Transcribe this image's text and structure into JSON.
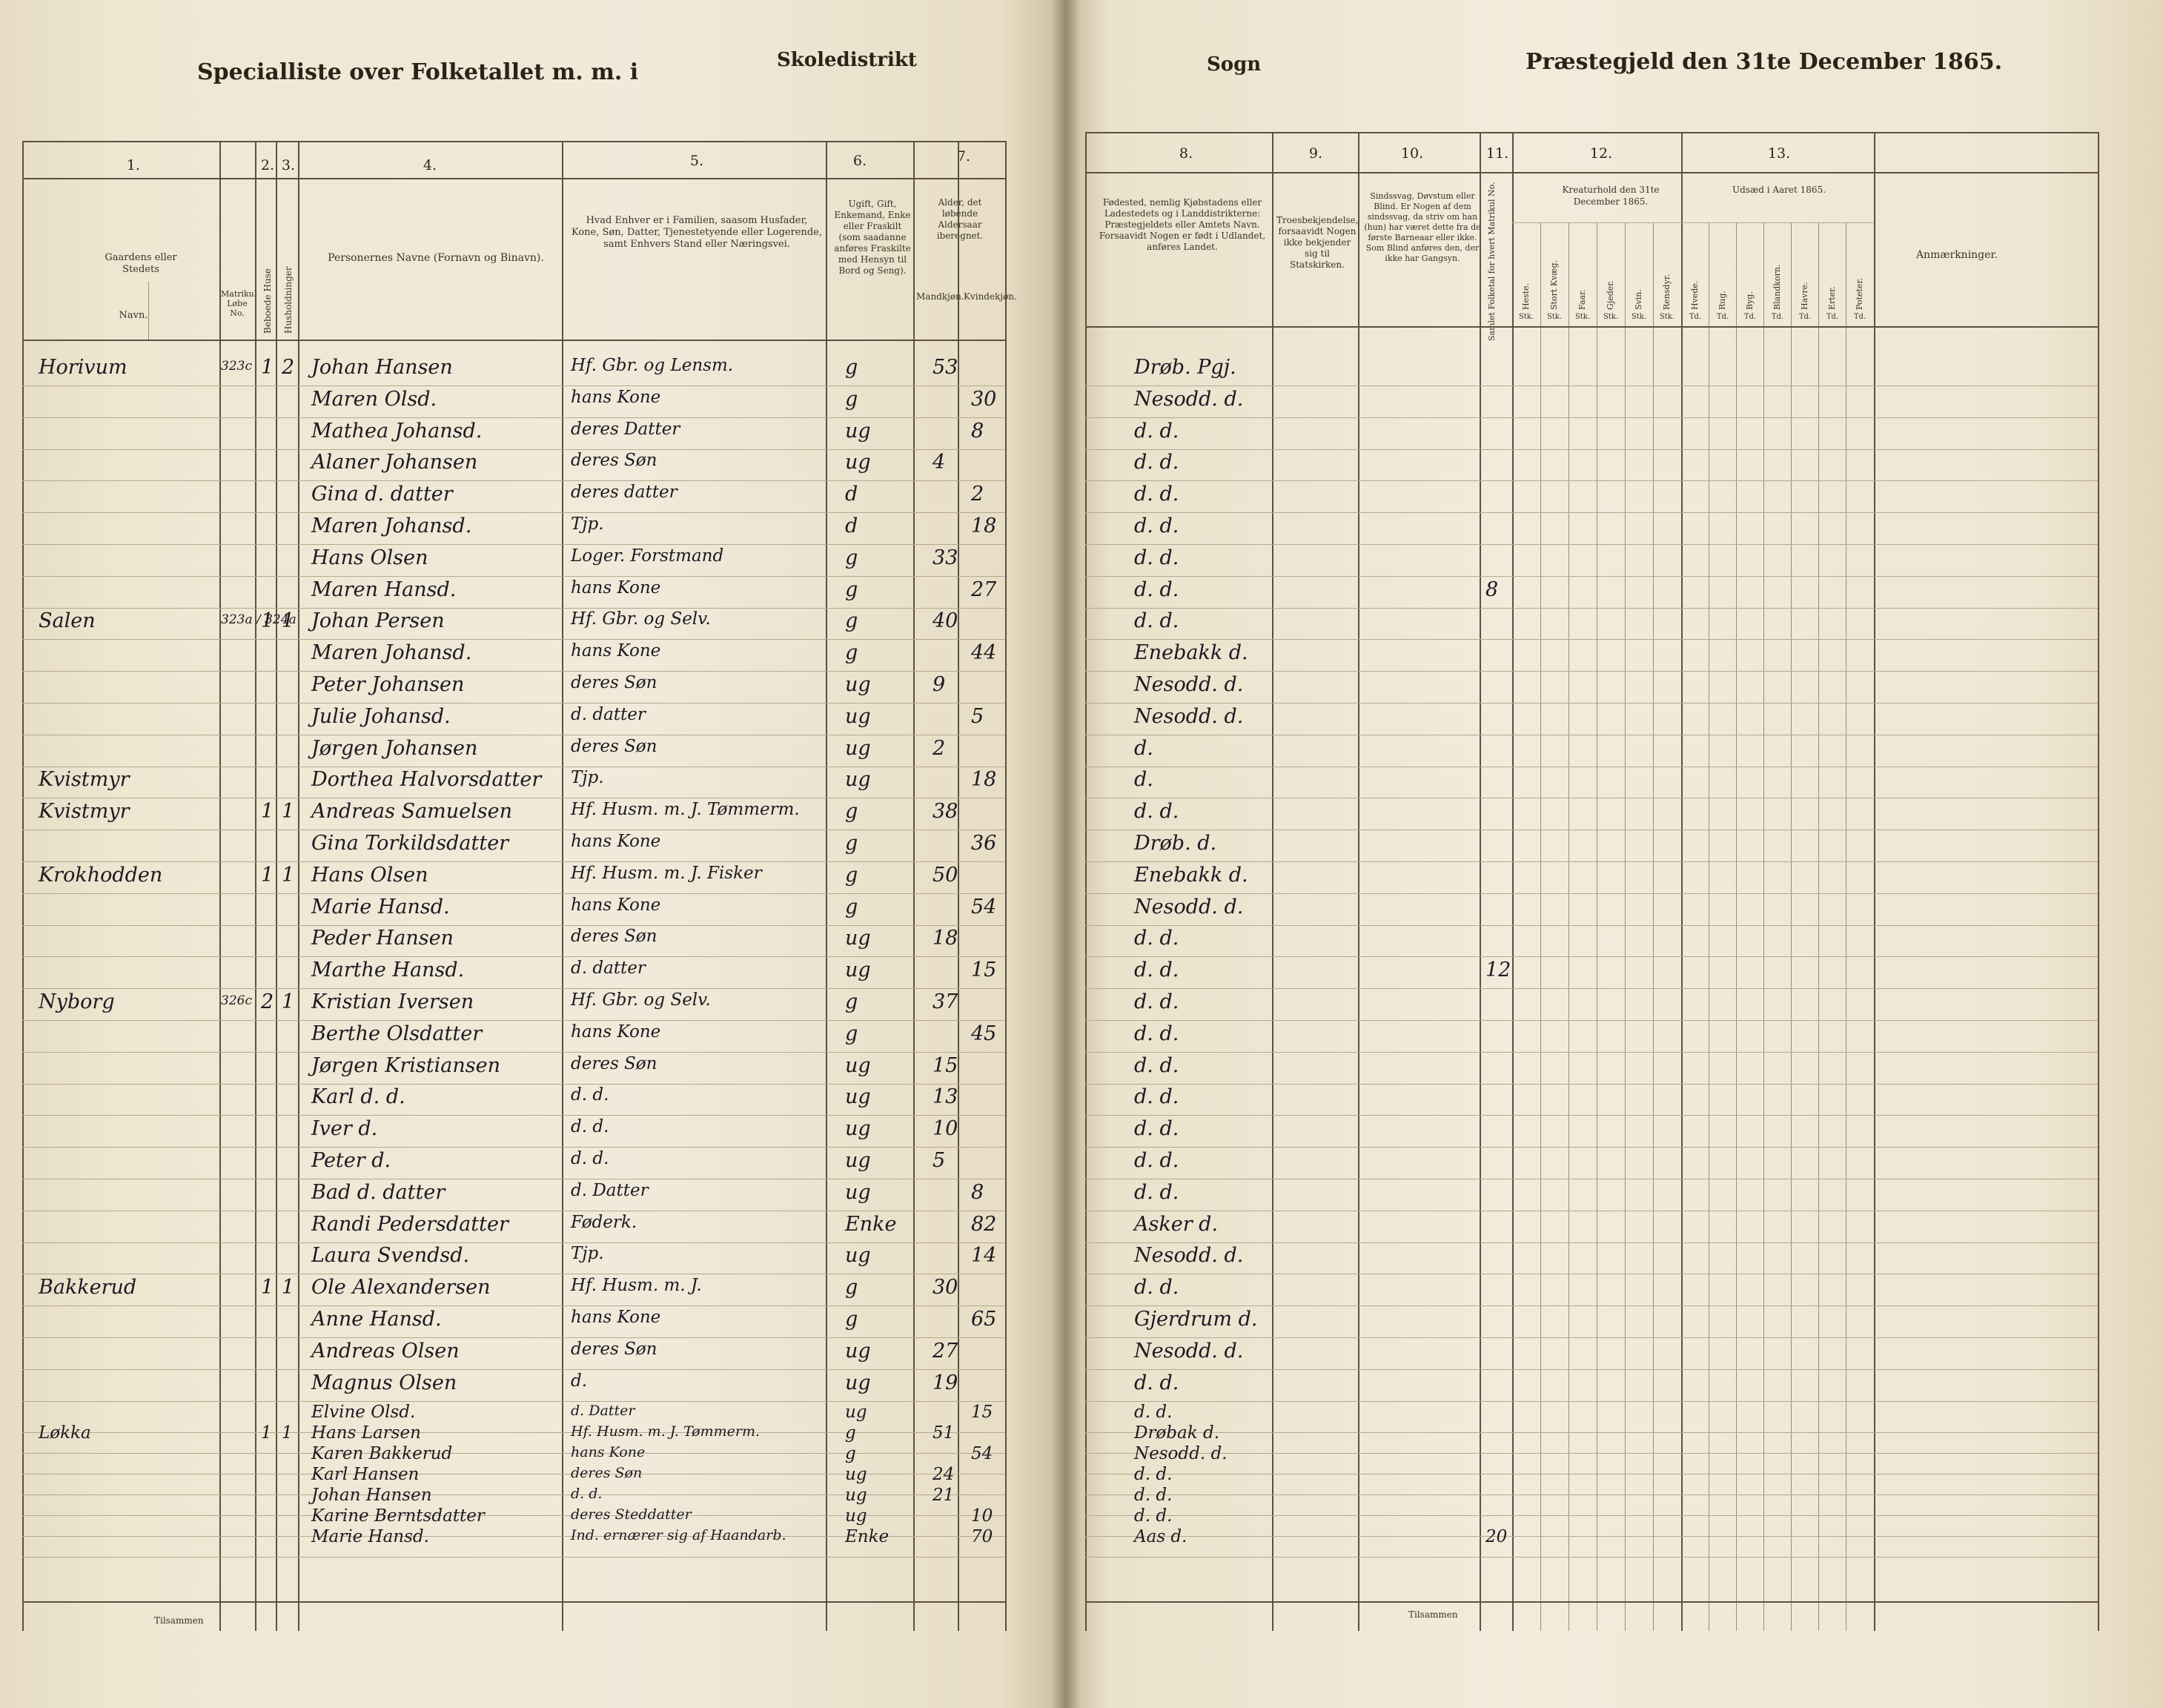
{
  "header": {
    "left_title": "Specialliste over Folketallet m. m. i",
    "district": "Skoledistrikt",
    "sogn": "Sogn",
    "right_title": "Præstegjeld den 31te December 1865."
  },
  "columns": {
    "c1": {
      "num": "1.",
      "title": "Gaardens eller Stedets",
      "navn": "Navn.",
      "matr": "Matrikul Løbe No."
    },
    "c2": {
      "num": "2.",
      "label": "Beboede Huse"
    },
    "c3": {
      "num": "3.",
      "label": "Husholdninger"
    },
    "c4": {
      "num": "4.",
      "title": "Personernes Navne (Fornavn og Binavn)."
    },
    "c5": {
      "num": "5.",
      "title": "Hvad Enhver er i Familien, saasom Husfader, Kone, Søn, Datter, Tjenestetyende eller Logerende, samt Enhvers Stand eller Næringsvei."
    },
    "c6": {
      "num": "6.",
      "title": "Ugift, Gift, Enkemand, Enke eller Fraskilt (som saadanne anføres Fraskilte med Hensyn til Bord og Seng)."
    },
    "c7": {
      "num": "7.",
      "title": "Alder, det løbende Aldersaar iberegnet.",
      "m": "Mandkjøn.",
      "f": "Kvindekjøn."
    },
    "c8": {
      "num": "8.",
      "title": "Fødested, nemlig Kjøbstadens eller Ladestedets og i Landdistrikterne: Præstegjeldets eller Amtets Navn. Forsaavidt Nogen er født i Udlandet, anføres Landet."
    },
    "c9": {
      "num": "9.",
      "title": "Troesbekjendelse, forsaavidt Nogen ikke bekjender sig til Statskirken."
    },
    "c10": {
      "num": "10.",
      "title": "Sindssvag, Døvstum eller Blind. Er Nogen af dem sindssvag, da striv om han (hun) har været dette fra de første Barneaar eller ikke. Som Blind anføres den, der ikke har Gangsyn."
    },
    "c11": {
      "num": "11.",
      "label": "Samlet Folketal for hvert Matrikul No."
    },
    "c12": {
      "num": "12.",
      "title": "Kreaturhold den 31te December 1865.",
      "subs": [
        "Heste.",
        "Stort Kvæg.",
        "Faar.",
        "Gjeder.",
        "Svin.",
        "Rensdyr."
      ],
      "unit": "Stk."
    },
    "c13": {
      "num": "13.",
      "title": "Udsæd i Aaret 1865.",
      "subs": [
        "Hvede.",
        "Rug.",
        "Byg.",
        "Blandkorn.",
        "Havre.",
        "Erter.",
        "Poteter."
      ],
      "unit": "Td."
    },
    "remarks": "Anmærkninger."
  },
  "rows": [
    {
      "farm": "Horivum",
      "matr": "323c",
      "hus": "1",
      "hh": "2",
      "name": "Johan Hansen",
      "role": "Hf. Gbr. og Lensm.",
      "civil": "g",
      "m": "53",
      "f": "",
      "birth": "Drøb. Pgj.",
      "total": ""
    },
    {
      "farm": "",
      "matr": "",
      "hus": "",
      "hh": "",
      "name": "Maren Olsd.",
      "role": "hans Kone",
      "civil": "g",
      "m": "",
      "f": "30",
      "birth": "Nesodd. d.",
      "total": ""
    },
    {
      "farm": "",
      "matr": "",
      "hus": "",
      "hh": "",
      "name": "Mathea Johansd.",
      "role": "deres Datter",
      "civil": "ug",
      "m": "",
      "f": "8",
      "birth": "d. d.",
      "total": ""
    },
    {
      "farm": "",
      "matr": "",
      "hus": "",
      "hh": "",
      "name": "Alaner Johansen",
      "role": "deres Søn",
      "civil": "ug",
      "m": "4",
      "f": "",
      "birth": "d. d.",
      "total": ""
    },
    {
      "farm": "",
      "matr": "",
      "hus": "",
      "hh": "",
      "name": "Gina d. datter",
      "role": "deres datter",
      "civil": "d",
      "m": "",
      "f": "2",
      "birth": "d. d.",
      "total": ""
    },
    {
      "farm": "",
      "matr": "",
      "hus": "",
      "hh": "",
      "name": "Maren Johansd.",
      "role": "Tjp.",
      "civil": "d",
      "m": "",
      "f": "18",
      "birth": "d. d.",
      "total": ""
    },
    {
      "farm": "",
      "matr": "",
      "hus": "",
      "hh": "",
      "name": "Hans Olsen",
      "role": "Loger. Forstmand",
      "civil": "g",
      "m": "33",
      "f": "",
      "birth": "d. d.",
      "total": ""
    },
    {
      "farm": "",
      "matr": "",
      "hus": "",
      "hh": "",
      "name": "Maren Hansd.",
      "role": "hans Kone",
      "civil": "g",
      "m": "",
      "f": "27",
      "birth": "d. d.",
      "total": "8"
    },
    {
      "farm": "Salen",
      "matr": "323a / 324a",
      "hus": "1",
      "hh": "1",
      "name": "Johan Persen",
      "role": "Hf. Gbr. og Selv.",
      "civil": "g",
      "m": "40",
      "f": "",
      "birth": "d. d.",
      "total": ""
    },
    {
      "farm": "",
      "matr": "",
      "hus": "",
      "hh": "",
      "name": "Maren Johansd.",
      "role": "hans Kone",
      "civil": "g",
      "m": "",
      "f": "44",
      "birth": "Enebakk d.",
      "total": ""
    },
    {
      "farm": "",
      "matr": "",
      "hus": "",
      "hh": "",
      "name": "Peter Johansen",
      "role": "deres Søn",
      "civil": "ug",
      "m": "9",
      "f": "",
      "birth": "Nesodd. d.",
      "total": ""
    },
    {
      "farm": "",
      "matr": "",
      "hus": "",
      "hh": "",
      "name": "Julie Johansd.",
      "role": "d. datter",
      "civil": "ug",
      "m": "",
      "f": "5",
      "birth": "Nesodd. d.",
      "total": ""
    },
    {
      "farm": "",
      "matr": "",
      "hus": "",
      "hh": "",
      "name": "Jørgen Johansen",
      "role": "deres Søn",
      "civil": "ug",
      "m": "2",
      "f": "",
      "birth": "d.",
      "total": ""
    },
    {
      "farm": "Kvistmyr",
      "matr": "",
      "hus": "",
      "hh": "",
      "name": "Dorthea Halvorsdatter",
      "role": "Tjp.",
      "civil": "ug",
      "m": "",
      "f": "18",
      "birth": "d.",
      "total": ""
    },
    {
      "farm": "Kvistmyr",
      "matr": "",
      "hus": "1",
      "hh": "1",
      "name": "Andreas Samuelsen",
      "role": "Hf. Husm. m. J. Tømmerm.",
      "civil": "g",
      "m": "38",
      "f": "",
      "birth": "d. d.",
      "total": ""
    },
    {
      "farm": "",
      "matr": "",
      "hus": "",
      "hh": "",
      "name": "Gina Torkildsdatter",
      "role": "hans Kone",
      "civil": "g",
      "m": "",
      "f": "36",
      "birth": "Drøb. d.",
      "total": ""
    },
    {
      "farm": "Krokhodden",
      "matr": "",
      "hus": "1",
      "hh": "1",
      "name": "Hans Olsen",
      "role": "Hf. Husm. m. J. Fisker",
      "civil": "g",
      "m": "50",
      "f": "",
      "birth": "Enebakk d.",
      "total": ""
    },
    {
      "farm": "",
      "matr": "",
      "hus": "",
      "hh": "",
      "name": "Marie Hansd.",
      "role": "hans Kone",
      "civil": "g",
      "m": "",
      "f": "54",
      "birth": "Nesodd. d.",
      "total": ""
    },
    {
      "farm": "",
      "matr": "",
      "hus": "",
      "hh": "",
      "name": "Peder Hansen",
      "role": "deres Søn",
      "civil": "ug",
      "m": "18",
      "f": "",
      "birth": "d. d.",
      "total": ""
    },
    {
      "farm": "",
      "matr": "",
      "hus": "",
      "hh": "",
      "name": "Marthe Hansd.",
      "role": "d. datter",
      "civil": "ug",
      "m": "",
      "f": "15",
      "birth": "d. d.",
      "total": "12"
    },
    {
      "farm": "Nyborg",
      "matr": "326c",
      "hus": "2",
      "hh": "1",
      "name": "Kristian Iversen",
      "role": "Hf. Gbr. og Selv.",
      "civil": "g",
      "m": "37",
      "f": "",
      "birth": "d. d.",
      "total": ""
    },
    {
      "farm": "",
      "matr": "",
      "hus": "",
      "hh": "",
      "name": "Berthe Olsdatter",
      "role": "hans Kone",
      "civil": "g",
      "m": "",
      "f": "45",
      "birth": "d. d.",
      "total": ""
    },
    {
      "farm": "",
      "matr": "",
      "hus": "",
      "hh": "",
      "name": "Jørgen Kristiansen",
      "role": "deres Søn",
      "civil": "ug",
      "m": "15",
      "f": "",
      "birth": "d. d.",
      "total": ""
    },
    {
      "farm": "",
      "matr": "",
      "hus": "",
      "hh": "",
      "name": "Karl d. d.",
      "role": "d. d.",
      "civil": "ug",
      "m": "13",
      "f": "",
      "birth": "d. d.",
      "total": ""
    },
    {
      "farm": "",
      "matr": "",
      "hus": "",
      "hh": "",
      "name": "Iver d.",
      "role": "d. d.",
      "civil": "ug",
      "m": "10",
      "f": "",
      "birth": "d. d.",
      "total": ""
    },
    {
      "farm": "",
      "matr": "",
      "hus": "",
      "hh": "",
      "name": "Peter d.",
      "role": "d. d.",
      "civil": "ug",
      "m": "5",
      "f": "",
      "birth": "d. d.",
      "total": ""
    },
    {
      "farm": "",
      "matr": "",
      "hus": "",
      "hh": "",
      "name": "Bad d. datter",
      "role": "d. Datter",
      "civil": "ug",
      "m": "",
      "f": "8",
      "birth": "d. d.",
      "total": ""
    },
    {
      "farm": "",
      "matr": "",
      "hus": "",
      "hh": "",
      "name": "Randi Pedersdatter",
      "role": "Føderk.",
      "civil": "Enke",
      "m": "",
      "f": "82",
      "birth": "Asker d.",
      "total": ""
    },
    {
      "farm": "",
      "matr": "",
      "hus": "",
      "hh": "",
      "name": "Laura Svendsd.",
      "role": "Tjp.",
      "civil": "ug",
      "m": "",
      "f": "14",
      "birth": "Nesodd. d.",
      "total": ""
    },
    {
      "farm": "Bakkerud",
      "matr": "",
      "hus": "1",
      "hh": "1",
      "name": "Ole Alexandersen",
      "role": "Hf. Husm. m. J.",
      "civil": "g",
      "m": "30",
      "f": "",
      "birth": "d. d.",
      "total": ""
    },
    {
      "farm": "",
      "matr": "",
      "hus": "",
      "hh": "",
      "name": "Anne Hansd.",
      "role": "hans Kone",
      "civil": "g",
      "m": "",
      "f": "65",
      "birth": "Gjerdrum d.",
      "total": ""
    },
    {
      "farm": "",
      "matr": "",
      "hus": "",
      "hh": "",
      "name": "Andreas Olsen",
      "role": "deres Søn",
      "civil": "ug",
      "m": "27",
      "f": "",
      "birth": "Nesodd. d.",
      "total": ""
    },
    {
      "farm": "",
      "matr": "",
      "hus": "",
      "hh": "",
      "name": "Magnus Olsen",
      "role": "d.",
      "civil": "ug",
      "m": "19",
      "f": "",
      "birth": "d. d.",
      "total": ""
    },
    {
      "farm": "",
      "matr": "",
      "hus": "",
      "hh": "",
      "name": "Elvine Olsd.",
      "role": "d. Datter",
      "civil": "ug",
      "m": "",
      "f": "15",
      "birth": "d. d.",
      "total": ""
    },
    {
      "farm": "Løkka",
      "matr": "",
      "hus": "1",
      "hh": "1",
      "name": "Hans Larsen",
      "role": "Hf. Husm. m. J. Tømmerm.",
      "civil": "g",
      "m": "51",
      "f": "",
      "birth": "Drøbak d.",
      "total": ""
    },
    {
      "farm": "",
      "matr": "",
      "hus": "",
      "hh": "",
      "name": "Karen Bakkerud",
      "role": "hans Kone",
      "civil": "g",
      "m": "",
      "f": "54",
      "birth": "Nesodd. d.",
      "total": ""
    },
    {
      "farm": "",
      "matr": "",
      "hus": "",
      "hh": "",
      "name": "Karl Hansen",
      "role": "deres Søn",
      "civil": "ug",
      "m": "24",
      "f": "",
      "birth": "d. d.",
      "total": ""
    },
    {
      "farm": "",
      "matr": "",
      "hus": "",
      "hh": "",
      "name": "Johan Hansen",
      "role": "d. d.",
      "civil": "ug",
      "m": "21",
      "f": "",
      "birth": "d. d.",
      "total": ""
    },
    {
      "farm": "",
      "matr": "",
      "hus": "",
      "hh": "",
      "name": "Karine Berntsdatter",
      "role": "deres Steddatter",
      "civil": "ug",
      "m": "",
      "f": "10",
      "birth": "d. d.",
      "total": ""
    },
    {
      "farm": "",
      "matr": "",
      "hus": "",
      "hh": "",
      "name": "Marie Hansd.",
      "role": "Ind. ernærer sig af Haandarb.",
      "civil": "Enke",
      "m": "",
      "f": "70",
      "birth": "Aas d.",
      "total": "20"
    }
  ],
  "footer": {
    "left_total_label": "Tilsammen",
    "right_total_label": "Tilsammen"
  },
  "colors": {
    "paper": "#f1eada",
    "ink": "#1d1a22",
    "rule": "#5c5040"
  }
}
